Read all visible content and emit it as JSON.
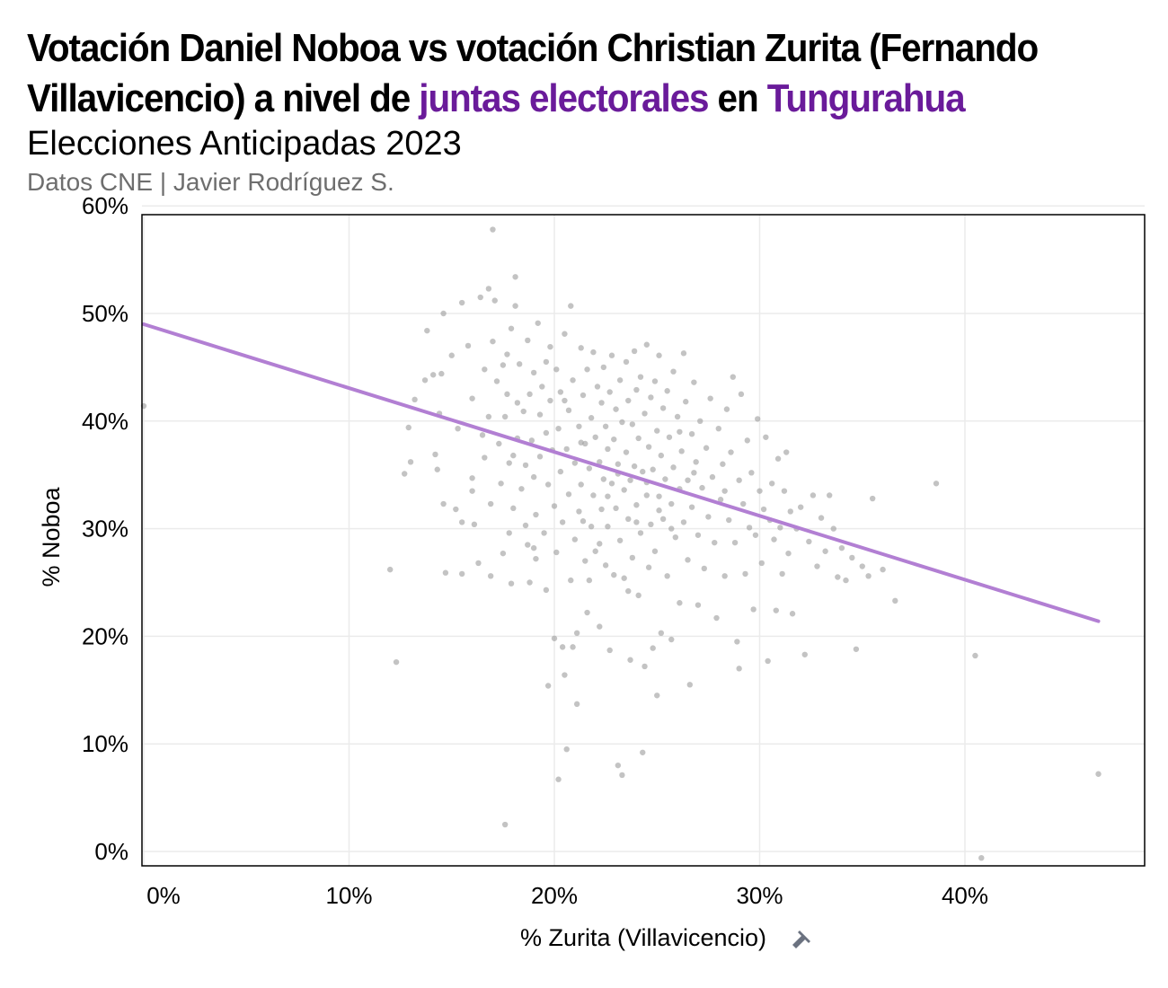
{
  "header": {
    "title_line1": "Votación Daniel Noboa vs votación Christian Zurita (Fernando",
    "title_line2_pre": "Villavicencio) a nivel de ",
    "title_line2_hl1": "juntas electorales",
    "title_line2_mid": " en ",
    "title_line2_hl2": "Tungurahua",
    "subtitle": "Elecciones Anticipadas 2023",
    "caption": "Datos CNE | Javier Rodríguez S."
  },
  "icons": {
    "xlabel_icon": "pushpin-icon"
  },
  "colors": {
    "highlight": "#6a1b9a",
    "trend": "#b27fd3",
    "points": "#9e9e9e",
    "grid": "#ebebeb"
  },
  "chart_data": {
    "type": "scatter",
    "xlabel": "% Zurita (Villavicencio)",
    "ylabel": "% Noboa",
    "xlim": [
      0,
      0.48
    ],
    "ylim": [
      0,
      0.6
    ],
    "x_ticks": [
      0,
      0.1,
      0.2,
      0.3,
      0.4
    ],
    "x_tick_labels": [
      "0%",
      "10%",
      "20%",
      "30%",
      "40%"
    ],
    "y_ticks": [
      0,
      0.1,
      0.2,
      0.3,
      0.4,
      0.5,
      0.6
    ],
    "y_tick_labels": [
      "0%",
      "10%",
      "20%",
      "30%",
      "40%",
      "50%",
      "60%"
    ],
    "grid": true,
    "trend_line": {
      "x": [
        0,
        0.465
      ],
      "y": [
        0.49,
        0.214
      ]
    },
    "points": [
      [
        0.0,
        0.414
      ],
      [
        0.12,
        0.262
      ],
      [
        0.123,
        0.176
      ],
      [
        0.127,
        0.351
      ],
      [
        0.129,
        0.394
      ],
      [
        0.13,
        0.362
      ],
      [
        0.132,
        0.42
      ],
      [
        0.137,
        0.438
      ],
      [
        0.138,
        0.484
      ],
      [
        0.141,
        0.443
      ],
      [
        0.142,
        0.369
      ],
      [
        0.143,
        0.355
      ],
      [
        0.144,
        0.407
      ],
      [
        0.145,
        0.444
      ],
      [
        0.146,
        0.5
      ],
      [
        0.146,
        0.323
      ],
      [
        0.147,
        0.259
      ],
      [
        0.15,
        0.461
      ],
      [
        0.152,
        0.318
      ],
      [
        0.153,
        0.393
      ],
      [
        0.155,
        0.51
      ],
      [
        0.155,
        0.306
      ],
      [
        0.155,
        0.258
      ],
      [
        0.158,
        0.47
      ],
      [
        0.16,
        0.421
      ],
      [
        0.16,
        0.347
      ],
      [
        0.16,
        0.335
      ],
      [
        0.161,
        0.304
      ],
      [
        0.163,
        0.268
      ],
      [
        0.164,
        0.515
      ],
      [
        0.165,
        0.387
      ],
      [
        0.166,
        0.448
      ],
      [
        0.166,
        0.366
      ],
      [
        0.168,
        0.523
      ],
      [
        0.168,
        0.404
      ],
      [
        0.169,
        0.323
      ],
      [
        0.169,
        0.256
      ],
      [
        0.17,
        0.578
      ],
      [
        0.17,
        0.474
      ],
      [
        0.171,
        0.512
      ],
      [
        0.172,
        0.437
      ],
      [
        0.173,
        0.379
      ],
      [
        0.174,
        0.342
      ],
      [
        0.175,
        0.277
      ],
      [
        0.175,
        0.452
      ],
      [
        0.176,
        0.404
      ],
      [
        0.177,
        0.462
      ],
      [
        0.177,
        0.425
      ],
      [
        0.178,
        0.361
      ],
      [
        0.178,
        0.296
      ],
      [
        0.179,
        0.486
      ],
      [
        0.179,
        0.249
      ],
      [
        0.18,
        0.368
      ],
      [
        0.18,
        0.319
      ],
      [
        0.181,
        0.507
      ],
      [
        0.181,
        0.534
      ],
      [
        0.182,
        0.417
      ],
      [
        0.182,
        0.384
      ],
      [
        0.183,
        0.453
      ],
      [
        0.184,
        0.337
      ],
      [
        0.185,
        0.409
      ],
      [
        0.186,
        0.359
      ],
      [
        0.186,
        0.303
      ],
      [
        0.187,
        0.475
      ],
      [
        0.187,
        0.285
      ],
      [
        0.188,
        0.425
      ],
      [
        0.188,
        0.25
      ],
      [
        0.189,
        0.382
      ],
      [
        0.19,
        0.445
      ],
      [
        0.19,
        0.348
      ],
      [
        0.191,
        0.313
      ],
      [
        0.191,
        0.272
      ],
      [
        0.192,
        0.491
      ],
      [
        0.193,
        0.406
      ],
      [
        0.193,
        0.367
      ],
      [
        0.194,
        0.432
      ],
      [
        0.195,
        0.296
      ],
      [
        0.196,
        0.455
      ],
      [
        0.196,
        0.389
      ],
      [
        0.196,
        0.243
      ],
      [
        0.197,
        0.341
      ],
      [
        0.197,
        0.154
      ],
      [
        0.198,
        0.469
      ],
      [
        0.198,
        0.419
      ],
      [
        0.199,
        0.373
      ],
      [
        0.2,
        0.198
      ],
      [
        0.2,
        0.321
      ],
      [
        0.201,
        0.448
      ],
      [
        0.201,
        0.278
      ],
      [
        0.202,
        0.393
      ],
      [
        0.202,
        0.067
      ],
      [
        0.203,
        0.353
      ],
      [
        0.203,
        0.427
      ],
      [
        0.204,
        0.19
      ],
      [
        0.204,
        0.306
      ],
      [
        0.205,
        0.481
      ],
      [
        0.205,
        0.164
      ],
      [
        0.206,
        0.374
      ],
      [
        0.206,
        0.095
      ],
      [
        0.207,
        0.41
      ],
      [
        0.207,
        0.332
      ],
      [
        0.208,
        0.507
      ],
      [
        0.208,
        0.252
      ],
      [
        0.209,
        0.438
      ],
      [
        0.209,
        0.19
      ],
      [
        0.21,
        0.361
      ],
      [
        0.21,
        0.29
      ],
      [
        0.211,
        0.203
      ],
      [
        0.211,
        0.137
      ],
      [
        0.212,
        0.395
      ],
      [
        0.212,
        0.316
      ],
      [
        0.213,
        0.468
      ],
      [
        0.213,
        0.341
      ],
      [
        0.214,
        0.424
      ],
      [
        0.215,
        0.379
      ],
      [
        0.215,
        0.27
      ],
      [
        0.216,
        0.448
      ],
      [
        0.216,
        0.222
      ],
      [
        0.217,
        0.356
      ],
      [
        0.217,
        0.252
      ],
      [
        0.218,
        0.403
      ],
      [
        0.218,
        0.302
      ],
      [
        0.219,
        0.464
      ],
      [
        0.219,
        0.331
      ],
      [
        0.22,
        0.385
      ],
      [
        0.22,
        0.279
      ],
      [
        0.221,
        0.432
      ],
      [
        0.222,
        0.362
      ],
      [
        0.222,
        0.209
      ],
      [
        0.223,
        0.417
      ],
      [
        0.223,
        0.318
      ],
      [
        0.224,
        0.45
      ],
      [
        0.224,
        0.346
      ],
      [
        0.225,
        0.266
      ],
      [
        0.225,
        0.395
      ],
      [
        0.226,
        0.374
      ],
      [
        0.226,
        0.302
      ],
      [
        0.227,
        0.427
      ],
      [
        0.227,
        0.187
      ],
      [
        0.228,
        0.342
      ],
      [
        0.228,
        0.461
      ],
      [
        0.229,
        0.383
      ],
      [
        0.229,
        0.257
      ],
      [
        0.23,
        0.411
      ],
      [
        0.23,
        0.319
      ],
      [
        0.231,
        0.36
      ],
      [
        0.231,
        0.08
      ],
      [
        0.232,
        0.438
      ],
      [
        0.232,
        0.289
      ],
      [
        0.233,
        0.071
      ],
      [
        0.233,
        0.399
      ],
      [
        0.234,
        0.336
      ],
      [
        0.234,
        0.254
      ],
      [
        0.235,
        0.455
      ],
      [
        0.235,
        0.371
      ],
      [
        0.236,
        0.419
      ],
      [
        0.236,
        0.309
      ],
      [
        0.237,
        0.345
      ],
      [
        0.237,
        0.178
      ],
      [
        0.238,
        0.397
      ],
      [
        0.238,
        0.273
      ],
      [
        0.239,
        0.465
      ],
      [
        0.239,
        0.358
      ],
      [
        0.24,
        0.429
      ],
      [
        0.24,
        0.322
      ],
      [
        0.241,
        0.384
      ],
      [
        0.241,
        0.238
      ],
      [
        0.242,
        0.441
      ],
      [
        0.242,
        0.296
      ],
      [
        0.243,
        0.353
      ],
      [
        0.243,
        0.092
      ],
      [
        0.244,
        0.407
      ],
      [
        0.244,
        0.172
      ],
      [
        0.245,
        0.331
      ],
      [
        0.245,
        0.471
      ],
      [
        0.246,
        0.376
      ],
      [
        0.246,
        0.264
      ],
      [
        0.247,
        0.422
      ],
      [
        0.247,
        0.304
      ],
      [
        0.248,
        0.355
      ],
      [
        0.248,
        0.189
      ],
      [
        0.249,
        0.437
      ],
      [
        0.249,
        0.279
      ],
      [
        0.25,
        0.391
      ],
      [
        0.25,
        0.145
      ],
      [
        0.251,
        0.33
      ],
      [
        0.251,
        0.461
      ],
      [
        0.252,
        0.368
      ],
      [
        0.252,
        0.203
      ],
      [
        0.253,
        0.412
      ],
      [
        0.253,
        0.309
      ],
      [
        0.254,
        0.346
      ],
      [
        0.255,
        0.256
      ],
      [
        0.255,
        0.428
      ],
      [
        0.256,
        0.385
      ],
      [
        0.257,
        0.323
      ],
      [
        0.257,
        0.197
      ],
      [
        0.258,
        0.446
      ],
      [
        0.258,
        0.357
      ],
      [
        0.259,
        0.292
      ],
      [
        0.26,
        0.404
      ],
      [
        0.261,
        0.337
      ],
      [
        0.261,
        0.231
      ],
      [
        0.262,
        0.372
      ],
      [
        0.263,
        0.306
      ],
      [
        0.263,
        0.463
      ],
      [
        0.264,
        0.418
      ],
      [
        0.265,
        0.345
      ],
      [
        0.265,
        0.271
      ],
      [
        0.266,
        0.155
      ],
      [
        0.267,
        0.388
      ],
      [
        0.267,
        0.32
      ],
      [
        0.268,
        0.436
      ],
      [
        0.269,
        0.362
      ],
      [
        0.27,
        0.294
      ],
      [
        0.27,
        0.229
      ],
      [
        0.271,
        0.4
      ],
      [
        0.272,
        0.338
      ],
      [
        0.273,
        0.263
      ],
      [
        0.274,
        0.375
      ],
      [
        0.275,
        0.311
      ],
      [
        0.276,
        0.421
      ],
      [
        0.277,
        0.348
      ],
      [
        0.278,
        0.287
      ],
      [
        0.279,
        0.217
      ],
      [
        0.28,
        0.393
      ],
      [
        0.281,
        0.327
      ],
      [
        0.282,
        0.36
      ],
      [
        0.283,
        0.256
      ],
      [
        0.284,
        0.411
      ],
      [
        0.285,
        0.308
      ],
      [
        0.286,
        0.371
      ],
      [
        0.287,
        0.441
      ],
      [
        0.288,
        0.287
      ],
      [
        0.289,
        0.195
      ],
      [
        0.29,
        0.345
      ],
      [
        0.29,
        0.17
      ],
      [
        0.291,
        0.425
      ],
      [
        0.292,
        0.323
      ],
      [
        0.293,
        0.258
      ],
      [
        0.294,
        0.382
      ],
      [
        0.295,
        0.301
      ],
      [
        0.296,
        0.352
      ],
      [
        0.297,
        0.225
      ],
      [
        0.298,
        0.294
      ],
      [
        0.299,
        0.402
      ],
      [
        0.3,
        0.335
      ],
      [
        0.301,
        0.268
      ],
      [
        0.302,
        0.318
      ],
      [
        0.303,
        0.385
      ],
      [
        0.304,
        0.177
      ],
      [
        0.305,
        0.308
      ],
      [
        0.306,
        0.342
      ],
      [
        0.307,
        0.29
      ],
      [
        0.308,
        0.224
      ],
      [
        0.309,
        0.365
      ],
      [
        0.31,
        0.301
      ],
      [
        0.311,
        0.258
      ],
      [
        0.312,
        0.335
      ],
      [
        0.313,
        0.371
      ],
      [
        0.314,
        0.277
      ],
      [
        0.315,
        0.316
      ],
      [
        0.316,
        0.221
      ],
      [
        0.318,
        0.3
      ],
      [
        0.32,
        0.32
      ],
      [
        0.322,
        0.183
      ],
      [
        0.324,
        0.288
      ],
      [
        0.326,
        0.331
      ],
      [
        0.328,
        0.265
      ],
      [
        0.33,
        0.31
      ],
      [
        0.332,
        0.279
      ],
      [
        0.334,
        0.331
      ],
      [
        0.336,
        0.3
      ],
      [
        0.338,
        0.255
      ],
      [
        0.34,
        0.282
      ],
      [
        0.342,
        0.252
      ],
      [
        0.345,
        0.273
      ],
      [
        0.347,
        0.188
      ],
      [
        0.35,
        0.265
      ],
      [
        0.353,
        0.256
      ],
      [
        0.355,
        0.328
      ],
      [
        0.36,
        0.262
      ],
      [
        0.366,
        0.233
      ],
      [
        0.386,
        0.342
      ],
      [
        0.405,
        0.182
      ],
      [
        0.408,
        -0.006
      ],
      [
        0.465,
        0.072
      ],
      [
        0.176,
        0.025
      ],
      [
        0.19,
        0.282
      ],
      [
        0.214,
        0.307
      ],
      [
        0.236,
        0.242
      ],
      [
        0.261,
        0.39
      ],
      [
        0.283,
        0.335
      ],
      [
        0.24,
        0.306
      ],
      [
        0.257,
        0.3
      ],
      [
        0.222,
        0.286
      ],
      [
        0.213,
        0.38
      ],
      [
        0.231,
        0.351
      ],
      [
        0.251,
        0.317
      ],
      [
        0.268,
        0.352
      ],
      [
        0.205,
        0.419
      ],
      [
        0.226,
        0.33
      ],
      [
        0.245,
        0.343
      ]
    ]
  }
}
